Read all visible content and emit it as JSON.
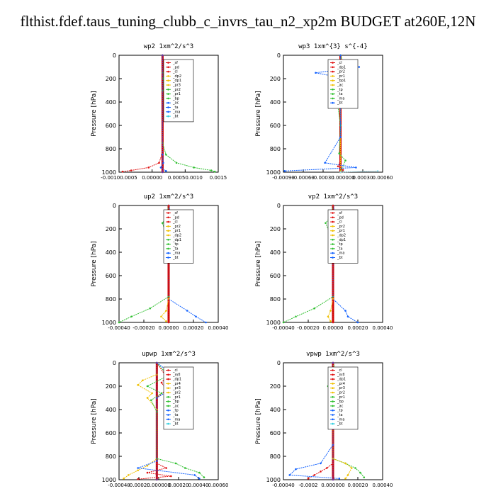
{
  "page": {
    "title": "flthist.fdef.taus_tuning_clubb_c_invrs_tau_n2_xp2m  BUDGET at260E,12N"
  },
  "chart_data": [
    {
      "type": "line",
      "title": "wp2   1xm^2/s^3",
      "ylabel": "Pressure [hPa]",
      "ylim": [
        1000,
        0
      ],
      "xlim": [
        -0.00125,
        0.0016
      ],
      "x_ticks": [
        "-0.00100.0005",
        "0.00000",
        "0.00050.0010",
        "0.0015"
      ],
      "y_ticks": [
        0,
        200,
        400,
        600,
        800,
        1000
      ],
      "legend": [
        "_sf",
        "_pd",
        "_cl",
        "_dp2",
        "_dp1",
        "_pr3",
        "_pr2",
        "_pr1",
        "_bp",
        "_ac",
        "_ta",
        "_ma",
        "_bt"
      ],
      "series": [
        {
          "name": "_dp1",
          "color": "#e01010",
          "points": [
            [
              0,
              0
            ],
            [
              0,
              700
            ],
            [
              -2e-05,
              850
            ],
            [
              -0.0001,
              920
            ],
            [
              -0.0004,
              960
            ],
            [
              -0.0009,
              985
            ],
            [
              -0.00115,
              995
            ]
          ]
        },
        {
          "name": "_pr1",
          "color": "#30c030",
          "points": [
            [
              0,
              0
            ],
            [
              0,
              150
            ],
            [
              2e-05,
              200
            ],
            [
              0,
              300
            ],
            [
              0,
              750
            ],
            [
              0.0001,
              850
            ],
            [
              0.0004,
              920
            ],
            [
              0.0009,
              960
            ],
            [
              0.0014,
              985
            ],
            [
              0.0015,
              995
            ]
          ]
        },
        {
          "name": "_bp",
          "color": "#1060ff",
          "points": [
            [
              0,
              0
            ],
            [
              0,
              850
            ],
            [
              2e-05,
              920
            ],
            [
              -5e-05,
              960
            ],
            [
              0.0001,
              990
            ]
          ]
        },
        {
          "name": "_ac",
          "color": "#7030a0",
          "points": [
            [
              0,
              0
            ],
            [
              0,
              1000
            ]
          ]
        }
      ]
    },
    {
      "type": "line",
      "title": "wp3   1xm^{3} s^{-4}",
      "ylabel": "Pressure [hPa]",
      "ylim": [
        1000,
        0
      ],
      "xlim": [
        -0.00092,
        0.00068
      ],
      "x_ticks": [
        "-0.00090",
        "-0.00060",
        "-0.00030",
        "0.000000",
        "0.00030",
        "0.00060"
      ],
      "y_ticks": [
        0,
        200,
        400,
        600,
        800,
        1000
      ],
      "legend": [
        "_cl",
        "_dp1",
        "_pr2",
        "_pr1",
        "_bp1",
        "_ac",
        "_tp",
        "_ta",
        "_ma",
        "_bt"
      ],
      "series": [
        {
          "name": "_dp1",
          "color": "#e01010",
          "points": [
            [
              0,
              0
            ],
            [
              -4e-05,
              140
            ],
            [
              0,
              160
            ],
            [
              -3e-05,
              200
            ],
            [
              0,
              250
            ],
            [
              0,
              900
            ],
            [
              -4e-05,
              950
            ],
            [
              4e-05,
              980
            ],
            [
              0,
              1000
            ]
          ]
        },
        {
          "name": "_pr1",
          "color": "#f0c000",
          "points": [
            [
              0,
              0
            ],
            [
              4e-05,
              160
            ],
            [
              -3e-05,
              220
            ],
            [
              2e-05,
              300
            ],
            [
              0,
              400
            ],
            [
              0,
              1000
            ]
          ]
        },
        {
          "name": "_ac",
          "color": "#30c030",
          "points": [
            [
              0,
              0
            ],
            [
              0.0001,
              130
            ],
            [
              -0.00015,
              170
            ],
            [
              0.00012,
              210
            ],
            [
              -8e-05,
              260
            ],
            [
              0.0001,
              300
            ],
            [
              -5e-05,
              400
            ],
            [
              0,
              600
            ],
            [
              -2e-05,
              840
            ],
            [
              8e-05,
              900
            ],
            [
              0,
              1000
            ]
          ]
        },
        {
          "name": "_tp",
          "color": "#1060ff",
          "points": [
            [
              0,
              0
            ],
            [
              0,
              60
            ],
            [
              0.0003,
              100
            ],
            [
              -0.0004,
              150
            ],
            [
              0.0001,
              200
            ],
            [
              0,
              250
            ],
            [
              0,
              700
            ],
            [
              -0.00025,
              920
            ],
            [
              0.00025,
              960
            ],
            [
              -0.0009,
              990
            ]
          ]
        },
        {
          "name": "_bt",
          "color": "#a0e0f0",
          "points": [
            [
              0,
              1000
            ],
            [
              0.0006,
              990
            ]
          ]
        }
      ]
    },
    {
      "type": "line",
      "title": "up2   1xm^2/s^3",
      "ylabel": "Pressure [hPa]",
      "ylim": [
        1000,
        0
      ],
      "xlim": [
        -0.0004,
        0.0004
      ],
      "x_ticks": [
        "-0.00040",
        "-0.00020",
        "0.00000",
        "0.00020",
        "0.00040"
      ],
      "y_ticks": [
        0,
        200,
        400,
        600,
        800,
        1000
      ],
      "legend": [
        "_sf",
        "_pd",
        "_cl",
        "_pr2",
        "_pr1",
        "_dp2",
        "_dp1",
        "_tp",
        "_ta",
        "_ma",
        "_bt"
      ],
      "series": [
        {
          "name": "_dp1",
          "color": "#30c030",
          "points": [
            [
              0,
              0
            ],
            [
              -2e-05,
              100
            ],
            [
              -5e-05,
              150
            ],
            [
              -2e-05,
              250
            ],
            [
              0,
              400
            ],
            [
              0,
              780
            ],
            [
              -0.00015,
              880
            ],
            [
              -0.0003,
              950
            ],
            [
              -0.0004,
              1000
            ]
          ]
        },
        {
          "name": "_tp",
          "color": "#1060ff",
          "points": [
            [
              0,
              0
            ],
            [
              3e-05,
              110
            ],
            [
              8e-05,
              190
            ],
            [
              3e-05,
              240
            ],
            [
              0,
              300
            ],
            [
              0,
              800
            ],
            [
              0.00015,
              900
            ],
            [
              0.00022,
              950
            ],
            [
              0.0003,
              1000
            ]
          ]
        },
        {
          "name": "_pr1",
          "color": "#f0c000",
          "points": [
            [
              0,
              800
            ],
            [
              -2e-05,
              900
            ],
            [
              -6e-05,
              950
            ],
            [
              -2e-05,
              990
            ]
          ]
        },
        {
          "name": "_cl",
          "color": "#e01010",
          "points": [
            [
              0,
              0
            ],
            [
              0,
              1000
            ]
          ]
        }
      ]
    },
    {
      "type": "line",
      "title": "vp2   1xm^2/s^3",
      "ylabel": "Pressure [hPa]",
      "ylim": [
        1000,
        0
      ],
      "xlim": [
        -0.0004,
        0.0004
      ],
      "x_ticks": [
        "-0.00040",
        "-0.00020",
        "0.00000",
        "0.00020",
        "0.00040"
      ],
      "y_ticks": [
        0,
        200,
        400,
        600,
        800,
        1000
      ],
      "legend": [
        "_sf",
        "_pd",
        "_cl",
        "_pr2",
        "_pr1",
        "_dp2",
        "_dp1",
        "_tp",
        "_ta",
        "_ma",
        "_bt"
      ],
      "series": [
        {
          "name": "_dp1",
          "color": "#30c030",
          "points": [
            [
              0,
              0
            ],
            [
              -2e-05,
              100
            ],
            [
              -6e-05,
              150
            ],
            [
              -2e-05,
              250
            ],
            [
              0,
              400
            ],
            [
              0,
              780
            ],
            [
              -0.00015,
              880
            ],
            [
              -0.0003,
              950
            ],
            [
              -0.0004,
              1000
            ]
          ]
        },
        {
          "name": "_tp",
          "color": "#1060ff",
          "points": [
            [
              0,
              0
            ],
            [
              3e-05,
              110
            ],
            [
              6e-05,
              190
            ],
            [
              2e-05,
              240
            ],
            [
              0,
              300
            ],
            [
              0,
              800
            ],
            [
              0.0001,
              900
            ],
            [
              0.00012,
              950
            ],
            [
              0.0002,
              1000
            ]
          ]
        },
        {
          "name": "_pr1",
          "color": "#f0c000",
          "points": [
            [
              0,
              800
            ],
            [
              -2e-05,
              900
            ],
            [
              -4e-05,
              950
            ],
            [
              -2e-05,
              990
            ]
          ]
        },
        {
          "name": "_cl",
          "color": "#e01010",
          "points": [
            [
              0,
              0
            ],
            [
              0,
              1000
            ]
          ]
        }
      ]
    },
    {
      "type": "line",
      "title": "upwp   1xm^2/s^3",
      "ylabel": "Pressure [hPa]",
      "ylim": [
        1000,
        0
      ],
      "xlim": [
        -0.0004,
        0.00065
      ],
      "x_ticks": [
        "-0.00040",
        "-0.00020",
        "0.000000",
        "0.00020",
        "0.00040",
        "0.00060"
      ],
      "y_ticks": [
        0,
        200,
        400,
        600,
        800,
        1000
      ],
      "legend": [
        "_cl",
        "_mfl",
        "_dp1",
        "_pr4",
        "_pr3",
        "_pr2",
        "_pr1",
        "_bp",
        "_ac",
        "_tp",
        "_ta",
        "_ma",
        "_bt"
      ],
      "series": [
        {
          "name": "_pr1",
          "color": "#f0c000",
          "points": [
            [
              0,
              0
            ],
            [
              0,
              100
            ],
            [
              -0.00015,
              150
            ],
            [
              -0.0002,
              190
            ],
            [
              -5e-05,
              260
            ],
            [
              -0.0001,
              300
            ],
            [
              0,
              400
            ],
            [
              0,
              820
            ],
            [
              -0.0001,
              880
            ],
            [
              -0.0002,
              920
            ],
            [
              -0.0003,
              960
            ],
            [
              -0.00035,
              990
            ]
          ]
        },
        {
          "name": "_dp1",
          "color": "#e01010",
          "points": [
            [
              0,
              0
            ],
            [
              0.0001,
              120
            ],
            [
              5e-05,
              170
            ],
            [
              0.0001,
              230
            ],
            [
              0,
              300
            ],
            [
              0,
              860
            ],
            [
              0.0001,
              900
            ],
            [
              -0.0001,
              940
            ],
            [
              0.00015,
              970
            ],
            [
              -0.0002,
              995
            ]
          ]
        },
        {
          "name": "_ac",
          "color": "#30c030",
          "points": [
            [
              0,
              0
            ],
            [
              0.00012,
              110
            ],
            [
              -0.0001,
              200
            ],
            [
              5e-05,
              260
            ],
            [
              -6e-05,
              320
            ],
            [
              0,
              420
            ],
            [
              0,
              820
            ],
            [
              0.0002,
              860
            ],
            [
              0.0003,
              900
            ],
            [
              0.00045,
              940
            ],
            [
              0.0005,
              980
            ]
          ]
        },
        {
          "name": "_tp",
          "color": "#1060ff",
          "points": [
            [
              0,
              0
            ],
            [
              0.0002,
              120
            ],
            [
              0.00025,
              200
            ],
            [
              0.0001,
              250
            ],
            [
              0,
              300
            ],
            [
              0,
              840
            ],
            [
              -0.0002,
              900
            ],
            [
              0.0004,
              960
            ],
            [
              0.00045,
              990
            ]
          ]
        },
        {
          "name": "_cl",
          "color": "#7030a0",
          "points": [
            [
              0,
              0
            ],
            [
              0,
              1000
            ]
          ]
        }
      ]
    },
    {
      "type": "line",
      "title": "vpwp   1xm^2/s^3",
      "ylabel": "Pressure [hPa]",
      "ylim": [
        1000,
        0
      ],
      "xlim": [
        -0.0004,
        0.0004
      ],
      "x_ticks": [
        "-0.00040",
        "-0.0002",
        "0.000000",
        "0.00020",
        "0.00040"
      ],
      "y_ticks": [
        0,
        200,
        400,
        600,
        800,
        1000
      ],
      "legend": [
        "_cl",
        "_mfl",
        "_dp1",
        "_pr4",
        "_pr3",
        "_pr2",
        "_pr1",
        "_bp",
        "_ac",
        "_tp",
        "_ta",
        "_ma",
        "_bt"
      ],
      "series": [
        {
          "name": "_ac",
          "color": "#30c030",
          "points": [
            [
              0,
              0
            ],
            [
              5e-05,
              140
            ],
            [
              -4e-05,
              200
            ],
            [
              4e-05,
              260
            ],
            [
              -3e-05,
              330
            ],
            [
              0,
              420
            ],
            [
              0,
              820
            ],
            [
              0.0001,
              860
            ],
            [
              0.00018,
              900
            ],
            [
              0.00022,
              940
            ],
            [
              0.00025,
              980
            ]
          ]
        },
        {
          "name": "_pr1",
          "color": "#f0c000",
          "points": [
            [
              0,
              0
            ],
            [
              3e-05,
              150
            ],
            [
              -3e-05,
              200
            ],
            [
              0,
              300
            ],
            [
              0,
              820
            ],
            [
              0.0001,
              860
            ],
            [
              0.00015,
              900
            ],
            [
              0.00012,
              960
            ],
            [
              0.0001,
              990
            ]
          ]
        },
        {
          "name": "_dp1",
          "color": "#e01010",
          "points": [
            [
              0,
              0
            ],
            [
              0,
              860
            ],
            [
              -5e-05,
              900
            ],
            [
              -0.0001,
              930
            ],
            [
              -0.00015,
              960
            ],
            [
              -0.0002,
              990
            ]
          ]
        },
        {
          "name": "_tp",
          "color": "#1060ff",
          "points": [
            [
              0,
              0
            ],
            [
              0,
              700
            ],
            [
              -0.0001,
              860
            ],
            [
              -0.0003,
              910
            ],
            [
              -0.00035,
              960
            ],
            [
              5e-05,
              990
            ]
          ]
        },
        {
          "name": "_cl",
          "color": "#7030a0",
          "points": [
            [
              0,
              0
            ],
            [
              0,
              1000
            ]
          ]
        }
      ]
    }
  ]
}
